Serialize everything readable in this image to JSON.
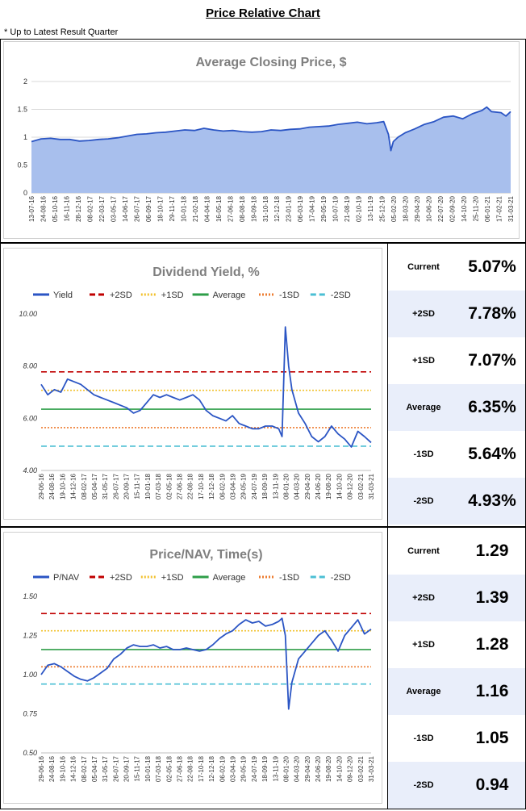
{
  "header": {
    "title": "Price Relative Chart",
    "note": "* Up to Latest Result Quarter"
  },
  "colors": {
    "series_line": "#2b55c4",
    "series_fill": "#a8bfed",
    "plus_2sd": "#c00000",
    "plus_1sd": "#f2c12e",
    "average": "#2e9e48",
    "minus_1sd": "#ed7d31",
    "minus_2sd": "#4bbfd4",
    "grid": "#d9d9d9",
    "title_gray": "#7f7f7f"
  },
  "chart_data": [
    {
      "id": "price",
      "type": "area",
      "title": "Average Closing Price, $",
      "xlabel": "",
      "ylabel": "",
      "ylim": [
        0,
        2
      ],
      "yticks": [
        0,
        0.5,
        1,
        1.5,
        2
      ],
      "ytick_labels": [
        "0",
        "0.5",
        "1",
        "1.5",
        "2"
      ],
      "grid": true,
      "x_tick_labels": [
        "13-07-16",
        "24-08-16",
        "05-10-16",
        "16-11-16",
        "28-12-16",
        "08-02-17",
        "22-03-17",
        "03-05-17",
        "14-06-17",
        "26-07-17",
        "06-09-17",
        "18-10-17",
        "29-11-17",
        "10-01-18",
        "21-02-18",
        "04-04-18",
        "16-05-18",
        "27-06-18",
        "08-08-18",
        "19-09-18",
        "31-10-18",
        "12-12-18",
        "23-01-19",
        "06-03-19",
        "17-04-19",
        "29-05-19",
        "10-07-19",
        "21-08-19",
        "02-10-19",
        "13-11-19",
        "25-12-19",
        "05-02-20",
        "18-03-20",
        "29-04-20",
        "10-06-20",
        "22-07-20",
        "02-09-20",
        "14-10-20",
        "25-11-20",
        "06-01-21",
        "17-02-21",
        "31-03-21"
      ],
      "series": [
        {
          "name": "Average Closing Price",
          "x": [
            0,
            0.02,
            0.04,
            0.06,
            0.08,
            0.1,
            0.12,
            0.14,
            0.16,
            0.18,
            0.2,
            0.22,
            0.24,
            0.26,
            0.28,
            0.3,
            0.32,
            0.34,
            0.36,
            0.38,
            0.4,
            0.42,
            0.44,
            0.46,
            0.48,
            0.5,
            0.52,
            0.54,
            0.56,
            0.58,
            0.6,
            0.62,
            0.64,
            0.66,
            0.68,
            0.7,
            0.72,
            0.735,
            0.745,
            0.75,
            0.755,
            0.765,
            0.78,
            0.8,
            0.82,
            0.84,
            0.86,
            0.88,
            0.9,
            0.92,
            0.94,
            0.95,
            0.96,
            0.98,
            0.99,
            1.0
          ],
          "values": [
            0.92,
            0.97,
            0.98,
            0.96,
            0.96,
            0.93,
            0.94,
            0.96,
            0.97,
            0.99,
            1.02,
            1.05,
            1.06,
            1.08,
            1.09,
            1.11,
            1.13,
            1.12,
            1.16,
            1.13,
            1.11,
            1.12,
            1.1,
            1.09,
            1.1,
            1.13,
            1.12,
            1.14,
            1.15,
            1.18,
            1.19,
            1.2,
            1.23,
            1.25,
            1.27,
            1.24,
            1.26,
            1.28,
            1.05,
            0.76,
            0.92,
            1.0,
            1.08,
            1.15,
            1.23,
            1.28,
            1.36,
            1.38,
            1.33,
            1.42,
            1.48,
            1.54,
            1.46,
            1.44,
            1.38,
            1.46
          ]
        }
      ]
    },
    {
      "id": "yield",
      "type": "line",
      "title": "Dividend Yield, %",
      "ylim": [
        4,
        10
      ],
      "yticks": [
        4,
        6,
        8,
        10
      ],
      "ytick_labels": [
        "4.00",
        "6.00",
        "8.00",
        "10.00"
      ],
      "grid": false,
      "legend": [
        "Yield",
        "+2SD",
        "+1SD",
        "Average",
        "-1SD",
        "-2SD"
      ],
      "x_tick_labels": [
        "29-06-16",
        "24-08-16",
        "19-10-16",
        "14-12-16",
        "08-02-17",
        "05-04-17",
        "31-05-17",
        "26-07-17",
        "20-09-17",
        "15-11-17",
        "10-01-18",
        "07-03-18",
        "02-05-18",
        "27-06-18",
        "22-08-18",
        "17-10-18",
        "12-12-18",
        "06-02-19",
        "03-04-19",
        "29-05-19",
        "24-07-19",
        "18-09-19",
        "13-11-19",
        "08-01-20",
        "04-03-20",
        "29-04-20",
        "24-06-20",
        "19-08-20",
        "14-10-20",
        "09-12-20",
        "03-02-21",
        "31-03-21"
      ],
      "series": [
        {
          "name": "Yield",
          "x": [
            0,
            0.02,
            0.04,
            0.06,
            0.08,
            0.1,
            0.12,
            0.14,
            0.16,
            0.18,
            0.2,
            0.22,
            0.24,
            0.26,
            0.28,
            0.3,
            0.32,
            0.34,
            0.36,
            0.38,
            0.4,
            0.42,
            0.44,
            0.46,
            0.48,
            0.5,
            0.52,
            0.54,
            0.56,
            0.58,
            0.6,
            0.62,
            0.64,
            0.66,
            0.68,
            0.7,
            0.72,
            0.73,
            0.74,
            0.75,
            0.76,
            0.78,
            0.8,
            0.82,
            0.84,
            0.86,
            0.88,
            0.9,
            0.92,
            0.94,
            0.96,
            0.98,
            1.0
          ],
          "values": [
            7.3,
            6.9,
            7.1,
            7.0,
            7.5,
            7.4,
            7.3,
            7.1,
            6.9,
            6.8,
            6.7,
            6.6,
            6.5,
            6.4,
            6.2,
            6.3,
            6.6,
            6.9,
            6.8,
            6.9,
            6.8,
            6.7,
            6.8,
            6.9,
            6.7,
            6.3,
            6.1,
            6.0,
            5.9,
            6.1,
            5.8,
            5.7,
            5.6,
            5.6,
            5.7,
            5.7,
            5.6,
            5.3,
            9.5,
            8.0,
            7.1,
            6.2,
            5.8,
            5.3,
            5.1,
            5.3,
            5.7,
            5.4,
            5.2,
            4.9,
            5.5,
            5.3,
            5.07
          ]
        }
      ],
      "reference_lines": {
        "+2SD": 7.78,
        "+1SD": 7.07,
        "Average": 6.35,
        "-1SD": 5.64,
        "-2SD": 4.93
      }
    },
    {
      "id": "pnav",
      "type": "line",
      "title": "Price/NAV, Time(s)",
      "ylim": [
        0.5,
        1.5
      ],
      "yticks": [
        0.5,
        0.75,
        1.0,
        1.25,
        1.5
      ],
      "ytick_labels": [
        "0.50",
        "0.75",
        "1.00",
        "1.25",
        "1.50"
      ],
      "grid": false,
      "legend": [
        "P/NAV",
        "+2SD",
        "+1SD",
        "Average",
        "-1SD",
        "-2SD"
      ],
      "x_tick_labels": [
        "29-06-16",
        "24-08-16",
        "19-10-16",
        "14-12-16",
        "08-02-17",
        "05-04-17",
        "31-05-17",
        "26-07-17",
        "20-09-17",
        "15-11-17",
        "10-01-18",
        "07-03-18",
        "02-05-18",
        "27-06-18",
        "22-08-18",
        "17-10-18",
        "12-12-18",
        "06-02-19",
        "03-04-19",
        "29-05-19",
        "24-07-19",
        "18-09-19",
        "13-11-19",
        "08-01-20",
        "04-03-20",
        "29-04-20",
        "24-06-20",
        "19-08-20",
        "14-10-20",
        "09-12-20",
        "03-02-21",
        "31-03-21"
      ],
      "series": [
        {
          "name": "P/NAV",
          "x": [
            0,
            0.02,
            0.04,
            0.06,
            0.08,
            0.1,
            0.12,
            0.14,
            0.16,
            0.18,
            0.2,
            0.22,
            0.24,
            0.26,
            0.28,
            0.3,
            0.32,
            0.34,
            0.36,
            0.38,
            0.4,
            0.42,
            0.44,
            0.46,
            0.48,
            0.5,
            0.52,
            0.54,
            0.56,
            0.58,
            0.6,
            0.62,
            0.64,
            0.66,
            0.68,
            0.7,
            0.72,
            0.73,
            0.74,
            0.75,
            0.76,
            0.78,
            0.8,
            0.82,
            0.84,
            0.86,
            0.88,
            0.9,
            0.92,
            0.94,
            0.96,
            0.98,
            1.0
          ],
          "values": [
            1.0,
            1.06,
            1.07,
            1.05,
            1.02,
            0.99,
            0.97,
            0.96,
            0.98,
            1.01,
            1.04,
            1.1,
            1.13,
            1.17,
            1.19,
            1.18,
            1.18,
            1.19,
            1.17,
            1.18,
            1.16,
            1.16,
            1.17,
            1.16,
            1.15,
            1.16,
            1.19,
            1.23,
            1.26,
            1.28,
            1.32,
            1.35,
            1.33,
            1.34,
            1.31,
            1.32,
            1.34,
            1.36,
            1.25,
            0.78,
            0.95,
            1.1,
            1.15,
            1.2,
            1.25,
            1.28,
            1.22,
            1.15,
            1.25,
            1.3,
            1.35,
            1.26,
            1.29
          ]
        }
      ],
      "reference_lines": {
        "+2SD": 1.39,
        "+1SD": 1.28,
        "Average": 1.16,
        "-1SD": 1.05,
        "-2SD": 0.94
      }
    }
  ],
  "yield_table": [
    {
      "label": "Current",
      "value": "5.07%"
    },
    {
      "label": "+2SD",
      "value": "7.78%"
    },
    {
      "label": "+1SD",
      "value": "7.07%"
    },
    {
      "label": "Average",
      "value": "6.35%"
    },
    {
      "label": "-1SD",
      "value": "5.64%"
    },
    {
      "label": "-2SD",
      "value": "4.93%"
    }
  ],
  "pnav_table": [
    {
      "label": "Current",
      "value": "1.29"
    },
    {
      "label": "+2SD",
      "value": "1.39"
    },
    {
      "label": "+1SD",
      "value": "1.28"
    },
    {
      "label": "Average",
      "value": "1.16"
    },
    {
      "label": "-1SD",
      "value": "1.05"
    },
    {
      "label": "-2SD",
      "value": "0.94"
    }
  ]
}
